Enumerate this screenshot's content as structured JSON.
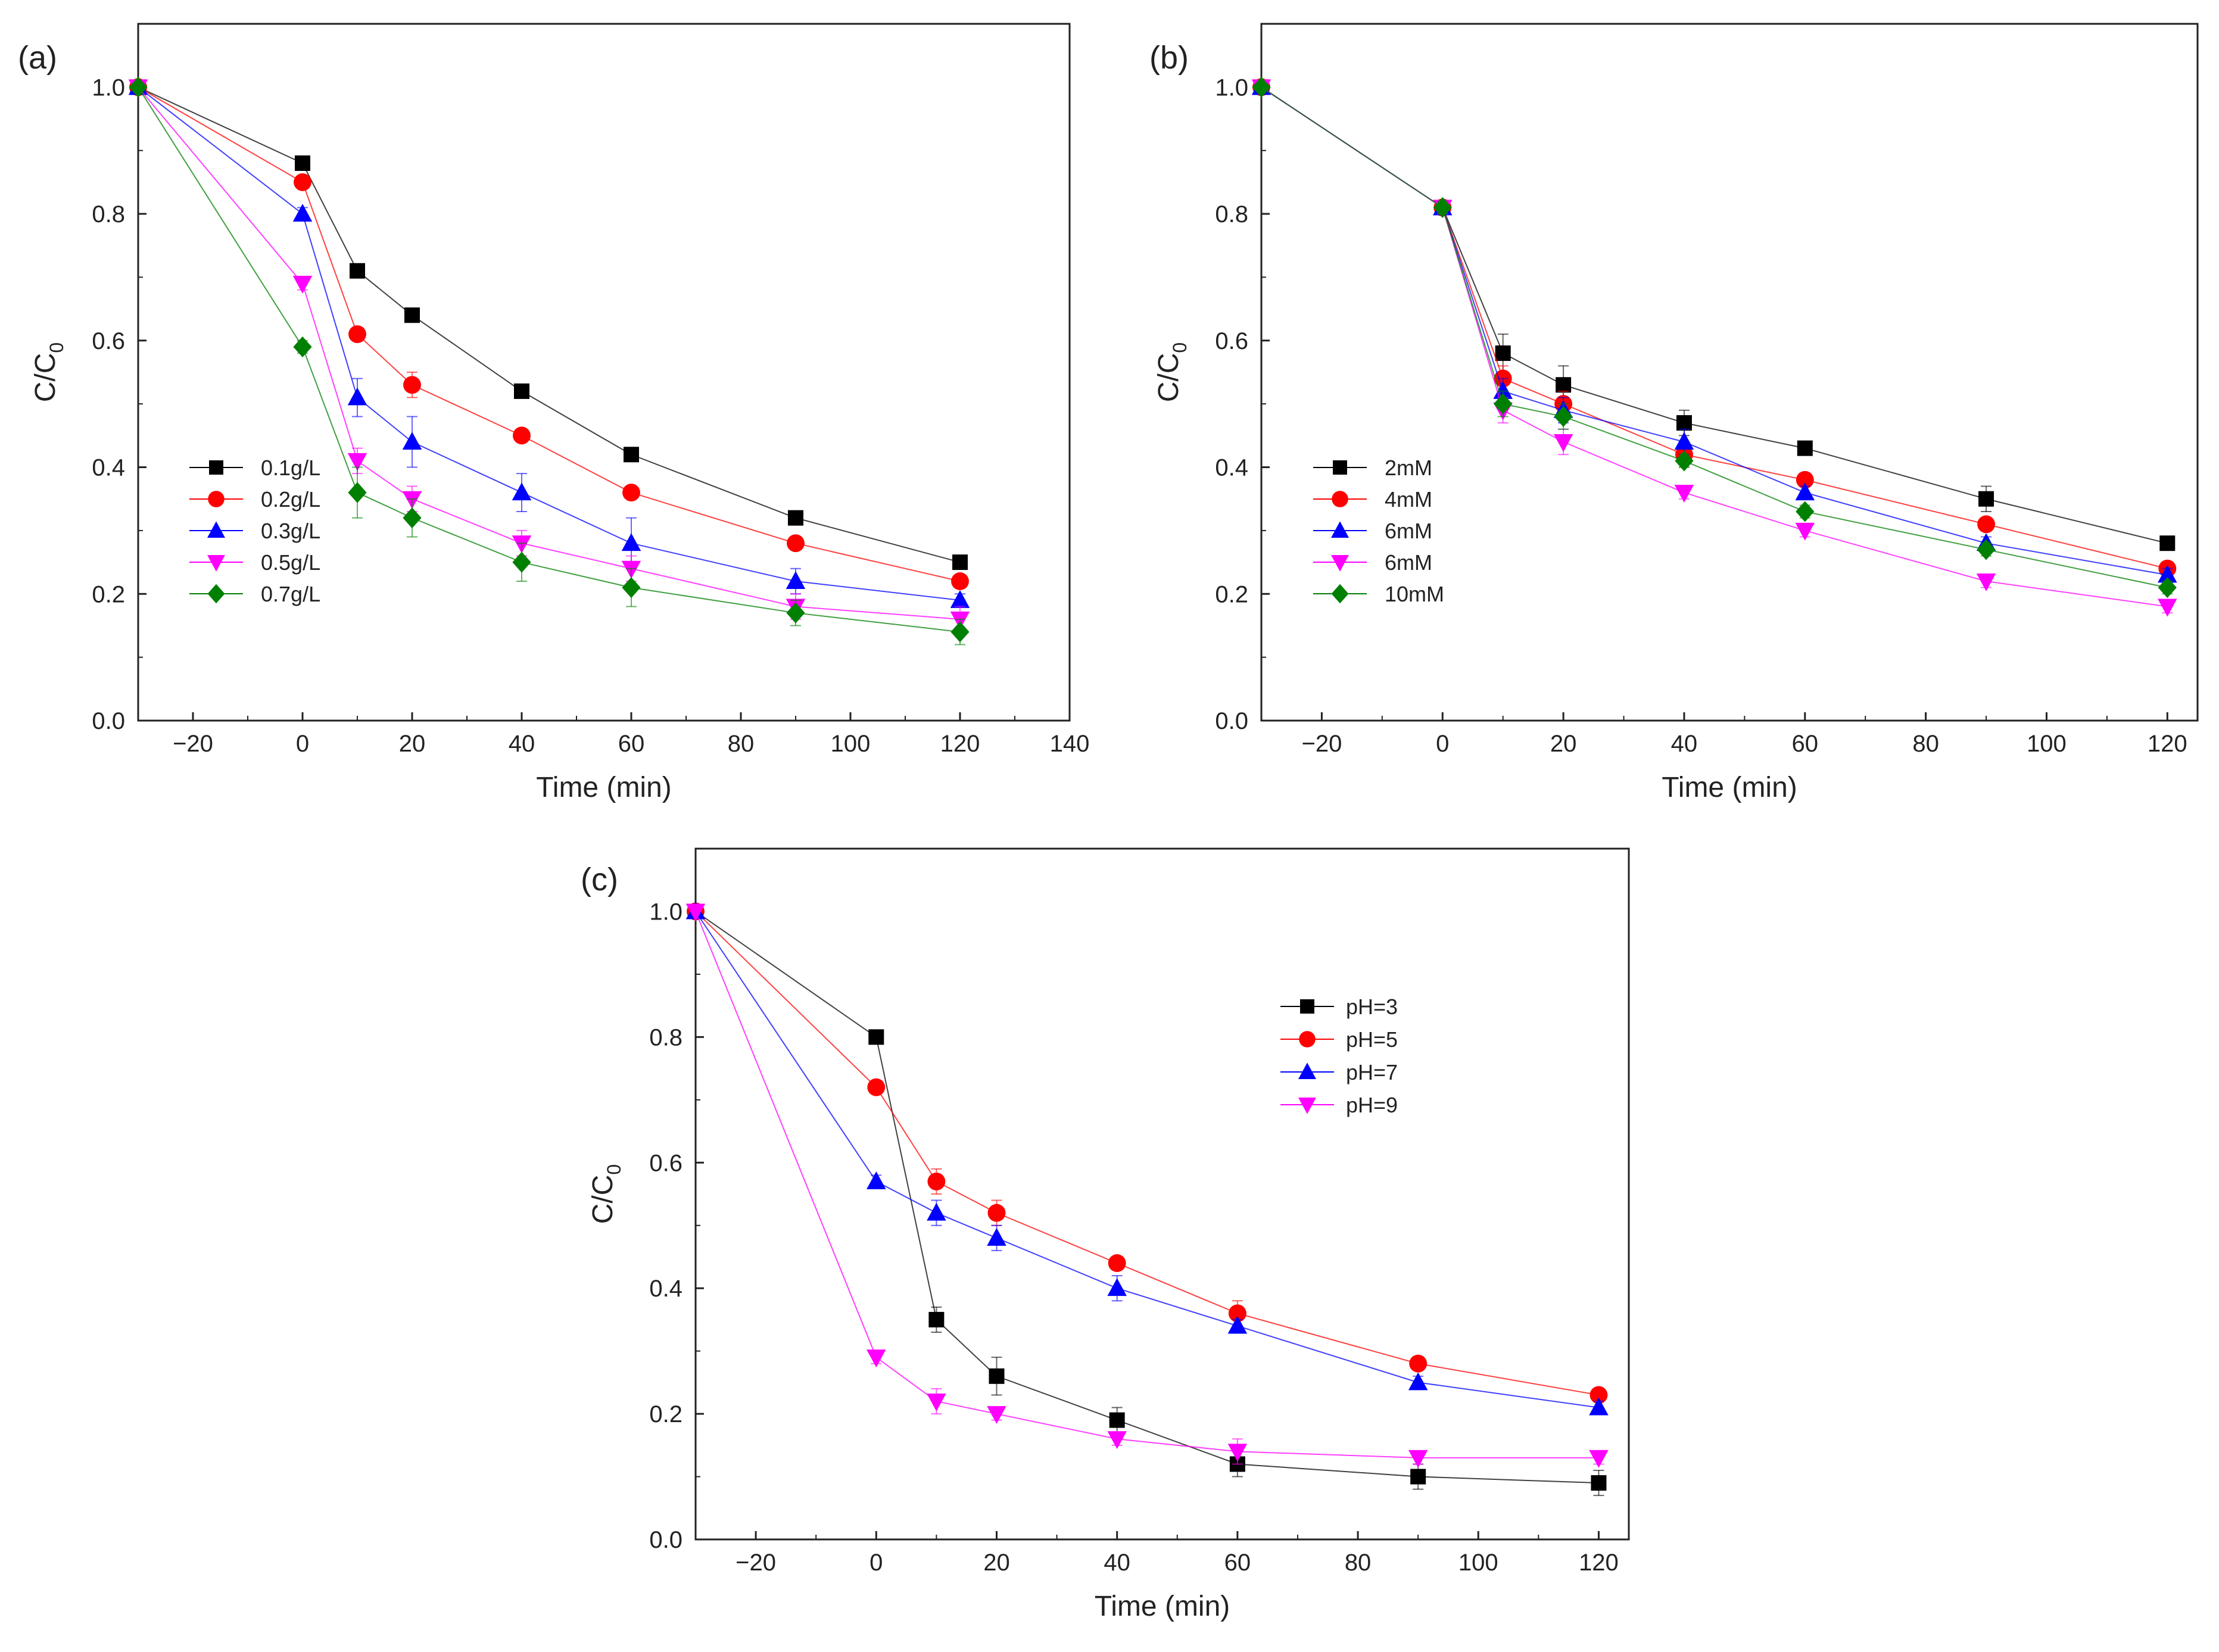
{
  "chart_data": [
    {
      "type": "line",
      "panel_label": "(a)",
      "xlabel": "Time (min)",
      "ylabel": {
        "base": "C/C",
        "sub": "0"
      },
      "xlim": [
        -30,
        140
      ],
      "ylim": [
        0,
        1.1
      ],
      "xticks": [
        -20,
        0,
        20,
        40,
        60,
        80,
        100,
        120,
        140
      ],
      "xtick_labels": [
        "−20",
        "0",
        "20",
        "40",
        "60",
        "80",
        "100",
        "120",
        "140"
      ],
      "yticks": [
        0,
        0.2,
        0.4,
        0.6,
        0.8,
        1.0
      ],
      "ytick_labels": [
        "0.0",
        "0.2",
        "0.4",
        "0.6",
        "0.8",
        "1.0"
      ],
      "legend_position": "lower-left",
      "x": [
        -30,
        0,
        10,
        20,
        40,
        60,
        90,
        120
      ],
      "series": [
        {
          "name": "0.1g/L",
          "color": "#000000",
          "marker": "square",
          "values": [
            1.0,
            0.88,
            0.71,
            0.64,
            0.52,
            0.42,
            0.32,
            0.25
          ],
          "errors": [
            0,
            0.01,
            0.01,
            0.01,
            0.01,
            0.01,
            0.01,
            0.01
          ]
        },
        {
          "name": "0.2g/L",
          "color": "#ff0000",
          "marker": "circle",
          "values": [
            1.0,
            0.85,
            0.61,
            0.53,
            0.45,
            0.36,
            0.28,
            0.22
          ],
          "errors": [
            0,
            0.01,
            0.01,
            0.02,
            0.01,
            0.01,
            0.01,
            0.01
          ]
        },
        {
          "name": "0.3g/L",
          "color": "#0000ff",
          "marker": "triangle",
          "values": [
            1.0,
            0.8,
            0.51,
            0.44,
            0.36,
            0.28,
            0.22,
            0.19
          ],
          "errors": [
            0,
            0.01,
            0.03,
            0.04,
            0.03,
            0.04,
            0.02,
            0.01
          ]
        },
        {
          "name": "0.5g/L",
          "color": "#ff00ff",
          "marker": "down-triangle",
          "values": [
            1.0,
            0.69,
            0.41,
            0.35,
            0.28,
            0.24,
            0.18,
            0.16
          ],
          "errors": [
            0,
            0.01,
            0.02,
            0.02,
            0.02,
            0.02,
            0.02,
            0.02
          ]
        },
        {
          "name": "0.7g/L",
          "color": "#008000",
          "marker": "diamond",
          "values": [
            1.0,
            0.59,
            0.36,
            0.32,
            0.25,
            0.21,
            0.17,
            0.14
          ],
          "errors": [
            0,
            0.01,
            0.04,
            0.03,
            0.03,
            0.03,
            0.02,
            0.02
          ]
        }
      ]
    },
    {
      "type": "line",
      "panel_label": "(b)",
      "xlabel": "Time (min)",
      "ylabel": {
        "base": "C/C",
        "sub": "0"
      },
      "xlim": [
        -30,
        125
      ],
      "ylim": [
        0,
        1.1
      ],
      "xticks": [
        -20,
        0,
        20,
        40,
        60,
        80,
        100,
        120
      ],
      "xtick_labels": [
        "−20",
        "0",
        "20",
        "40",
        "60",
        "80",
        "100",
        "120"
      ],
      "yticks": [
        0,
        0.2,
        0.4,
        0.6,
        0.8,
        1.0
      ],
      "ytick_labels": [
        "0.0",
        "0.2",
        "0.4",
        "0.6",
        "0.8",
        "1.0"
      ],
      "legend_position": "lower-left",
      "x": [
        -30,
        0,
        10,
        20,
        40,
        60,
        90,
        120
      ],
      "series": [
        {
          "name": "2mM",
          "color": "#000000",
          "marker": "square",
          "values": [
            1.0,
            0.81,
            0.58,
            0.53,
            0.47,
            0.43,
            0.35,
            0.28
          ],
          "errors": [
            0,
            0.01,
            0.03,
            0.03,
            0.02,
            0.01,
            0.02,
            0.01
          ]
        },
        {
          "name": "4mM",
          "color": "#ff0000",
          "marker": "circle",
          "values": [
            1.0,
            0.81,
            0.54,
            0.5,
            0.42,
            0.38,
            0.31,
            0.24
          ],
          "errors": [
            0,
            0.01,
            0.02,
            0.02,
            0.02,
            0.01,
            0.01,
            0.01
          ]
        },
        {
          "name": "6mM",
          "color": "#0000ff",
          "marker": "triangle",
          "values": [
            1.0,
            0.81,
            0.52,
            0.49,
            0.44,
            0.36,
            0.28,
            0.23
          ],
          "errors": [
            0,
            0.01,
            0.02,
            0.02,
            0.02,
            0.01,
            0.01,
            0.01
          ]
        },
        {
          "name": "6mM",
          "color": "#ff00ff",
          "marker": "down-triangle",
          "values": [
            1.0,
            0.81,
            0.49,
            0.44,
            0.36,
            0.3,
            0.22,
            0.18
          ],
          "errors": [
            0,
            0.01,
            0.02,
            0.02,
            0.01,
            0.01,
            0.01,
            0.01
          ]
        },
        {
          "name": "10mM",
          "color": "#008000",
          "marker": "diamond",
          "values": [
            1.0,
            0.81,
            0.5,
            0.48,
            0.41,
            0.33,
            0.27,
            0.21
          ],
          "errors": [
            0,
            0.01,
            0.02,
            0.02,
            0.01,
            0.01,
            0.01,
            0.01
          ]
        }
      ]
    },
    {
      "type": "line",
      "panel_label": "(c)",
      "xlabel": "Time (min)",
      "ylabel": {
        "base": "C/C",
        "sub": "0"
      },
      "xlim": [
        -30,
        125
      ],
      "ylim": [
        0,
        1.1
      ],
      "xticks": [
        -20,
        0,
        20,
        40,
        60,
        80,
        100,
        120
      ],
      "xtick_labels": [
        "−20",
        "0",
        "20",
        "40",
        "60",
        "80",
        "100",
        "120"
      ],
      "yticks": [
        0,
        0.2,
        0.4,
        0.6,
        0.8,
        1.0
      ],
      "ytick_labels": [
        "0.0",
        "0.2",
        "0.4",
        "0.6",
        "0.8",
        "1.0"
      ],
      "legend_position": "upper-center",
      "x": [
        -30,
        0,
        10,
        20,
        40,
        60,
        90,
        120
      ],
      "series": [
        {
          "name": "pH=3",
          "color": "#000000",
          "marker": "square",
          "values": [
            1.0,
            0.8,
            0.35,
            0.26,
            0.19,
            0.12,
            0.1,
            0.09
          ],
          "errors": [
            0,
            0.01,
            0.02,
            0.03,
            0.02,
            0.02,
            0.02,
            0.02
          ]
        },
        {
          "name": "pH=5",
          "color": "#ff0000",
          "marker": "circle",
          "values": [
            1.0,
            0.72,
            0.57,
            0.52,
            0.44,
            0.36,
            0.28,
            0.23
          ],
          "errors": [
            0,
            0.01,
            0.02,
            0.02,
            0.01,
            0.02,
            0.01,
            0.01
          ]
        },
        {
          "name": "pH=7",
          "color": "#0000ff",
          "marker": "triangle",
          "values": [
            1.0,
            0.57,
            0.52,
            0.48,
            0.4,
            0.34,
            0.25,
            0.21
          ],
          "errors": [
            0,
            0.01,
            0.02,
            0.02,
            0.02,
            0.01,
            0.01,
            0.01
          ]
        },
        {
          "name": "pH=9",
          "color": "#ff00ff",
          "marker": "down-triangle",
          "values": [
            1.0,
            0.29,
            0.22,
            0.2,
            0.16,
            0.14,
            0.13,
            0.13
          ],
          "errors": [
            0,
            0.01,
            0.02,
            0.01,
            0.01,
            0.02,
            0.01,
            0.01
          ]
        }
      ]
    }
  ]
}
